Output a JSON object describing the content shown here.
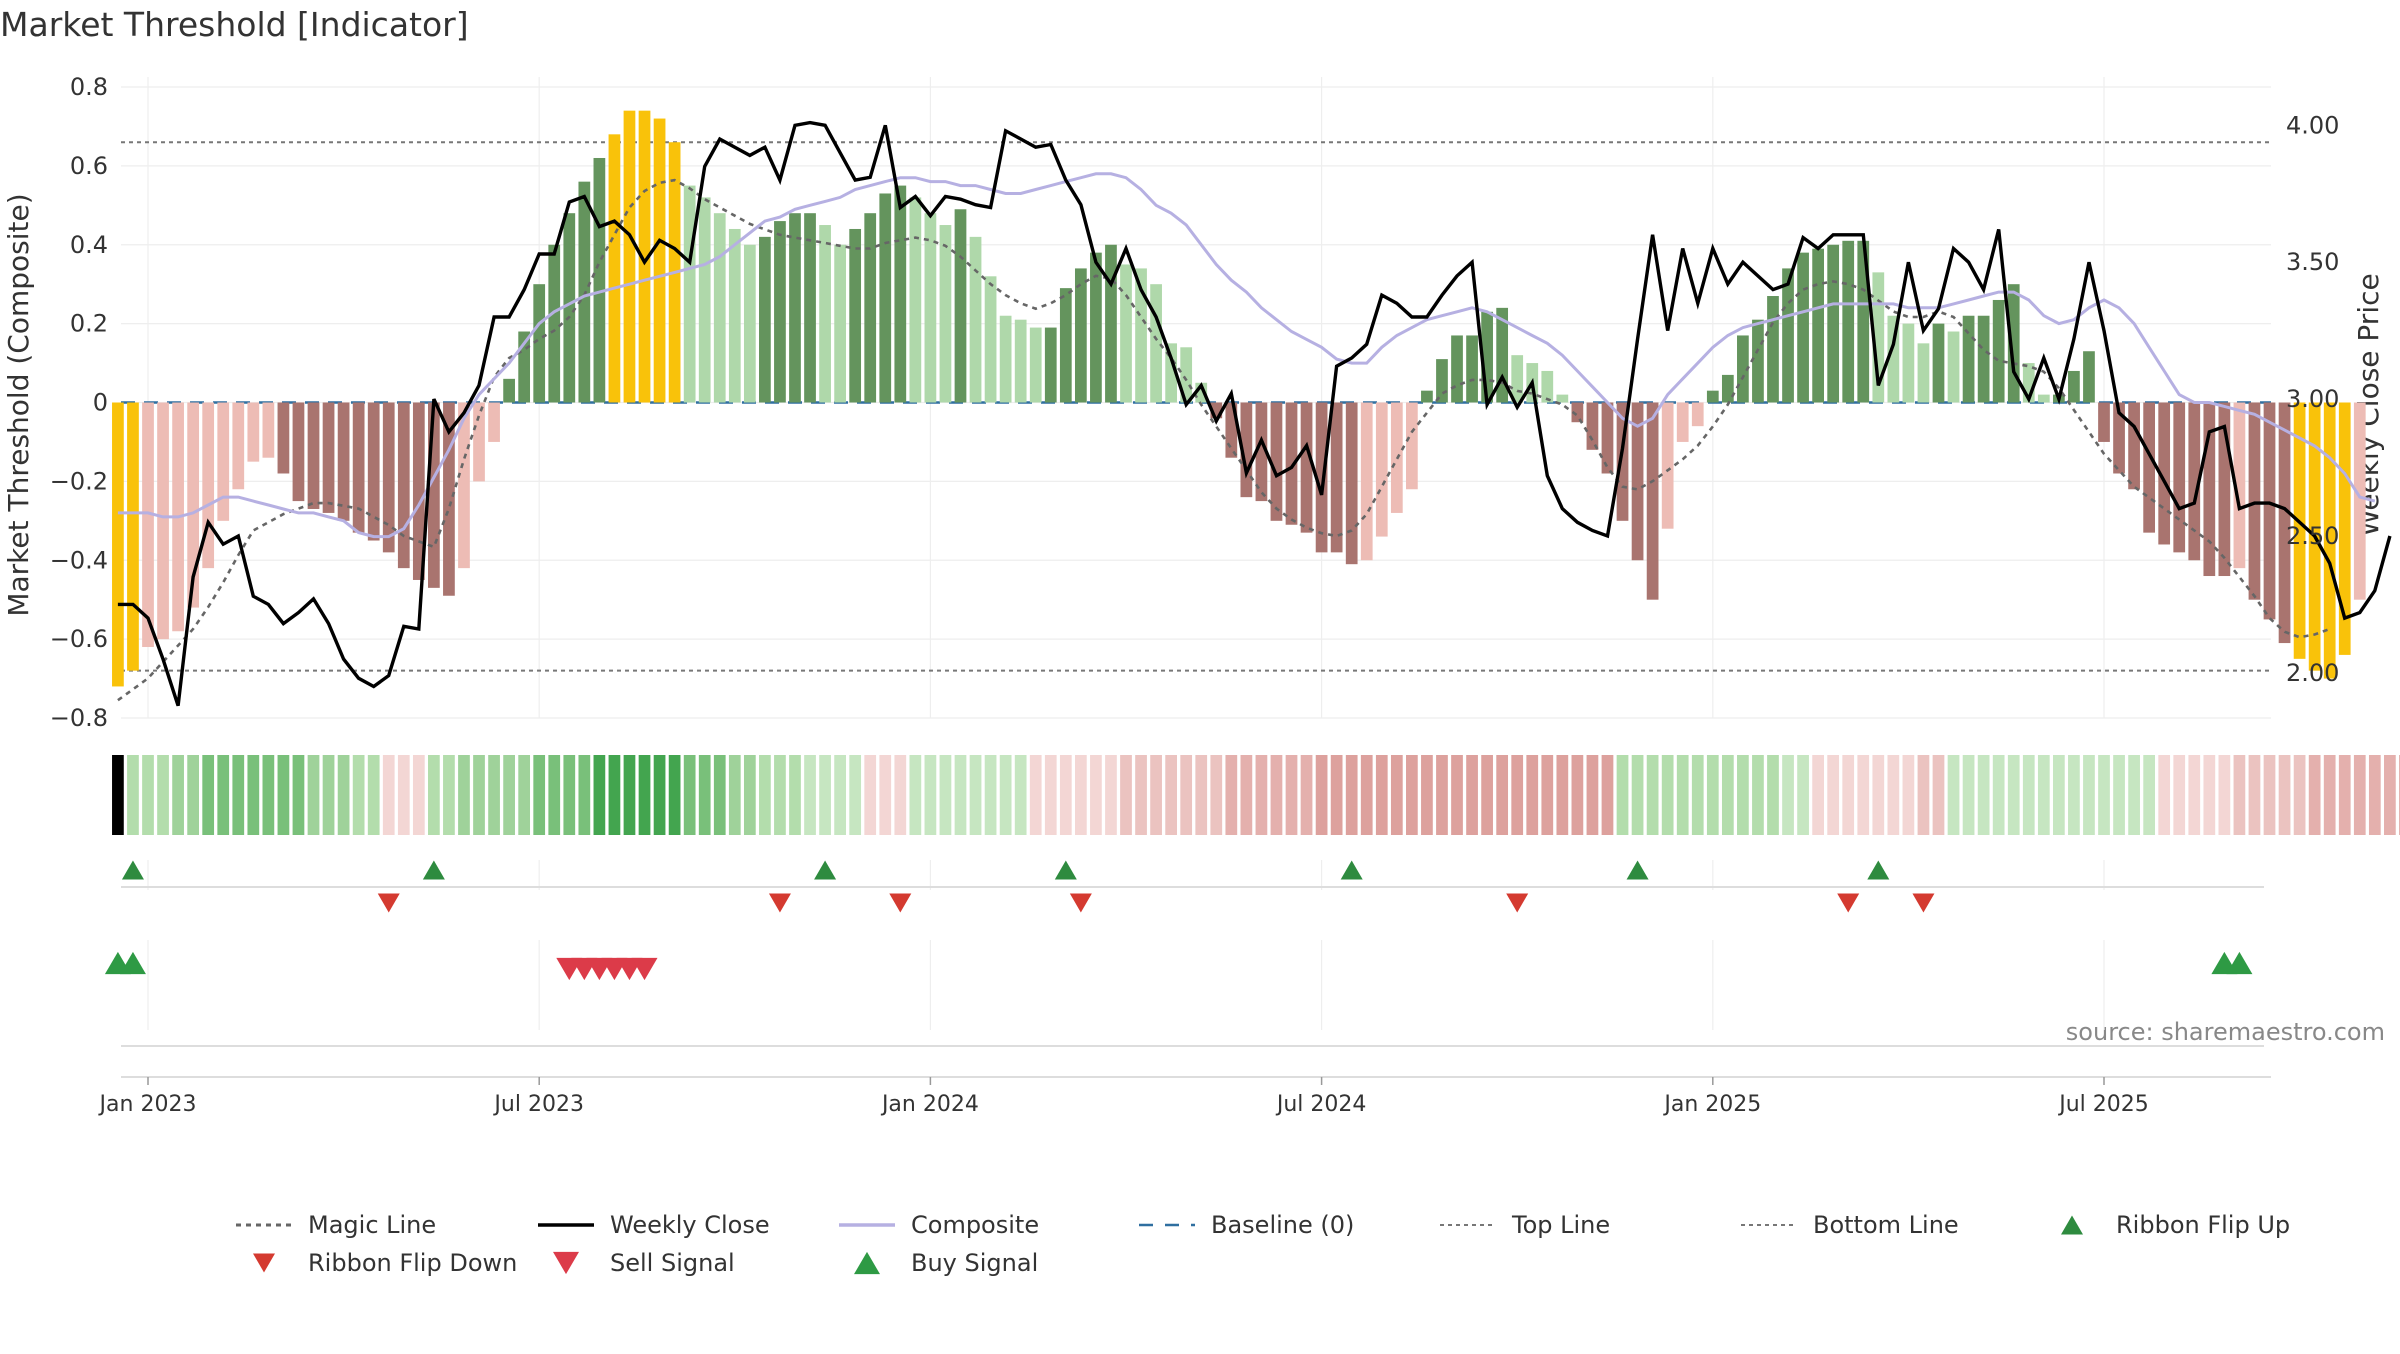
{
  "chart_data": {
    "type": "bar",
    "title": "Market Threshold [Indicator]",
    "ylabel": "Market Threshold (Composite)",
    "y2label": "Weekly Close Price",
    "source": "source: sharemaestro.com",
    "ylim": [
      -0.8,
      0.8
    ],
    "y2lim": [
      1.835,
      4.14
    ],
    "yticks": [
      0.8,
      0.6,
      0.4,
      0.2,
      0,
      -0.2,
      -0.4,
      -0.6,
      -0.8
    ],
    "ytick_labels": [
      "0.8",
      "0.6",
      "0.4",
      "0.2",
      "0",
      "−0.2",
      "−0.4",
      "−0.6",
      "−0.8"
    ],
    "y2ticks": [
      4.0,
      3.5,
      3.0,
      2.5,
      2.0
    ],
    "y2tick_labels": [
      "4.00",
      "3.50",
      "3.00",
      "2.50",
      "2.00"
    ],
    "x_range": [
      0,
      143
    ],
    "xticks": [
      {
        "x": 2,
        "label": "Jan 2023"
      },
      {
        "x": 28,
        "label": "Jul 2023"
      },
      {
        "x": 54,
        "label": "Jan 2024"
      },
      {
        "x": 80,
        "label": "Jul 2024"
      },
      {
        "x": 106,
        "label": "Jan 2025"
      },
      {
        "x": 132,
        "label": "Jul 2025"
      }
    ],
    "top_line": 0.66,
    "bottom_line": -0.68,
    "baseline": 0,
    "histogram": [
      -0.72,
      -0.68,
      -0.62,
      -0.6,
      -0.58,
      -0.52,
      -0.42,
      -0.3,
      -0.22,
      -0.15,
      -0.14,
      -0.18,
      -0.25,
      -0.27,
      -0.28,
      -0.3,
      -0.33,
      -0.35,
      -0.38,
      -0.42,
      -0.45,
      -0.47,
      -0.49,
      -0.42,
      -0.2,
      -0.1,
      0.06,
      0.18,
      0.3,
      0.4,
      0.48,
      0.56,
      0.62,
      0.68,
      0.74,
      0.74,
      0.72,
      0.66,
      0.55,
      0.52,
      0.48,
      0.44,
      0.4,
      0.42,
      0.46,
      0.48,
      0.48,
      0.45,
      0.4,
      0.44,
      0.48,
      0.53,
      0.55,
      0.52,
      0.48,
      0.45,
      0.49,
      0.42,
      0.32,
      0.22,
      0.21,
      0.19,
      0.19,
      0.29,
      0.34,
      0.38,
      0.4,
      0.35,
      0.34,
      0.3,
      0.15,
      0.14,
      0.05,
      -0.04,
      -0.14,
      -0.24,
      -0.25,
      -0.3,
      -0.31,
      -0.33,
      -0.38,
      -0.38,
      -0.41,
      -0.4,
      -0.34,
      -0.28,
      -0.22,
      0.03,
      0.11,
      0.17,
      0.17,
      0.23,
      0.24,
      0.12,
      0.1,
      0.08,
      0.02,
      -0.05,
      -0.12,
      -0.18,
      -0.3,
      -0.4,
      -0.5,
      -0.32,
      -0.1,
      -0.06,
      0.03,
      0.07,
      0.17,
      0.21,
      0.27,
      0.34,
      0.38,
      0.39,
      0.4,
      0.41,
      0.41,
      0.33,
      0.22,
      0.2,
      0.15,
      0.2,
      0.18,
      0.22,
      0.22,
      0.26,
      0.3,
      0.1,
      0.02,
      0.02,
      0.08,
      0.13,
      -0.1,
      -0.18,
      -0.22,
      -0.33,
      -0.36,
      -0.38,
      -0.4,
      -0.44,
      -0.44,
      -0.42,
      -0.5,
      -0.55,
      -0.61,
      -0.65,
      -0.68,
      -0.7,
      -0.64,
      -0.5
    ],
    "highlight_threshold": 0.64,
    "colors": {
      "highlight": "#f9c20a",
      "pos_strong": "#64945d",
      "pos_weak": "#afd8aa",
      "neg_strong": "#a9746f",
      "neg_weak": "#edbcb5",
      "magic_line": "#666666",
      "weekly_close": "#000000",
      "composite": "#b6b0e2",
      "baseline": "#2f6fa0",
      "threshold_lines": "#777777",
      "ribbon_up": "#2e8b3f",
      "ribbon_down": "#d43a30",
      "signal_sell": "#dc3b49",
      "signal_buy": "#2e9a44",
      "ribbon_pos_dark": "#43a54f",
      "ribbon_neg_dark": "#cf8784",
      "grid": "#eeeeee"
    },
    "weekly_close": [
      2.25,
      2.25,
      2.2,
      2.05,
      1.88,
      2.35,
      2.55,
      2.47,
      2.5,
      2.28,
      2.25,
      2.18,
      2.22,
      2.27,
      2.18,
      2.05,
      1.98,
      1.95,
      1.99,
      2.17,
      2.16,
      3.0,
      2.88,
      2.95,
      3.05,
      3.3,
      3.3,
      3.4,
      3.53,
      3.53,
      3.72,
      3.74,
      3.63,
      3.65,
      3.6,
      3.5,
      3.58,
      3.55,
      3.5,
      3.85,
      3.95,
      3.92,
      3.89,
      3.92,
      3.8,
      4.0,
      4.01,
      4.0,
      3.9,
      3.8,
      3.81,
      4.0,
      3.7,
      3.74,
      3.67,
      3.74,
      3.73,
      3.71,
      3.7,
      3.98,
      3.95,
      3.92,
      3.93,
      3.8,
      3.71,
      3.5,
      3.42,
      3.55,
      3.4,
      3.3,
      3.15,
      2.98,
      3.05,
      2.92,
      3.02,
      2.73,
      2.85,
      2.72,
      2.75,
      2.83,
      2.65,
      3.12,
      3.15,
      3.2,
      3.38,
      3.35,
      3.3,
      3.3,
      3.38,
      3.45,
      3.5,
      2.98,
      3.08,
      2.97,
      3.06,
      2.72,
      2.6,
      2.55,
      2.52,
      2.5,
      2.82,
      3.22,
      3.6,
      3.25,
      3.55,
      3.35,
      3.55,
      3.42,
      3.5,
      3.45,
      3.4,
      3.42,
      3.59,
      3.55,
      3.6,
      3.6,
      3.6,
      3.05,
      3.2,
      3.5,
      3.25,
      3.33,
      3.55,
      3.5,
      3.4,
      3.62,
      3.1,
      3.0,
      3.15,
      3.0,
      3.22,
      3.5,
      3.25,
      2.95,
      2.9,
      2.8,
      2.7,
      2.6,
      2.62,
      2.88,
      2.9,
      2.6,
      2.62,
      2.62,
      2.6,
      2.55,
      2.5,
      2.4,
      2.2,
      2.22,
      2.3,
      2.5
    ],
    "magic_line": [
      1.9,
      1.94,
      1.98,
      2.04,
      2.1,
      2.16,
      2.24,
      2.33,
      2.43,
      2.52,
      2.55,
      2.58,
      2.6,
      2.62,
      2.62,
      2.61,
      2.6,
      2.57,
      2.54,
      2.5,
      2.48,
      2.46,
      2.6,
      2.78,
      2.94,
      3.08,
      3.15,
      3.18,
      3.22,
      3.25,
      3.3,
      3.38,
      3.5,
      3.6,
      3.7,
      3.76,
      3.79,
      3.8,
      3.77,
      3.73,
      3.7,
      3.67,
      3.64,
      3.62,
      3.6,
      3.59,
      3.58,
      3.57,
      3.56,
      3.55,
      3.55,
      3.57,
      3.58,
      3.59,
      3.58,
      3.56,
      3.52,
      3.47,
      3.42,
      3.38,
      3.35,
      3.33,
      3.35,
      3.38,
      3.42,
      3.45,
      3.44,
      3.38,
      3.3,
      3.22,
      3.15,
      3.07,
      2.98,
      2.9,
      2.82,
      2.74,
      2.66,
      2.6,
      2.56,
      2.53,
      2.51,
      2.5,
      2.52,
      2.58,
      2.68,
      2.78,
      2.88,
      2.95,
      3.02,
      3.05,
      3.07,
      3.07,
      3.06,
      3.03,
      3.02,
      3.0,
      2.98,
      2.94,
      2.85,
      2.75,
      2.68,
      2.67,
      2.7,
      2.74,
      2.78,
      2.83,
      2.9,
      2.98,
      3.08,
      3.18,
      3.28,
      3.35,
      3.4,
      3.42,
      3.43,
      3.42,
      3.4,
      3.36,
      3.32,
      3.3,
      3.3,
      3.32,
      3.3,
      3.24,
      3.18,
      3.14,
      3.13,
      3.12,
      3.1,
      3.04,
      2.96,
      2.88,
      2.8,
      2.74,
      2.68,
      2.64,
      2.6,
      2.56,
      2.52,
      2.48,
      2.42,
      2.35,
      2.28,
      2.2,
      2.15,
      2.13,
      2.14,
      2.16
    ],
    "composite": [
      -0.28,
      -0.28,
      -0.28,
      -0.29,
      -0.29,
      -0.28,
      -0.26,
      -0.24,
      -0.24,
      -0.25,
      -0.26,
      -0.27,
      -0.28,
      -0.28,
      -0.29,
      -0.3,
      -0.33,
      -0.34,
      -0.34,
      -0.32,
      -0.26,
      -0.19,
      -0.12,
      -0.04,
      0.02,
      0.06,
      0.1,
      0.15,
      0.2,
      0.23,
      0.25,
      0.27,
      0.28,
      0.29,
      0.3,
      0.31,
      0.32,
      0.33,
      0.34,
      0.35,
      0.37,
      0.4,
      0.43,
      0.46,
      0.47,
      0.49,
      0.5,
      0.51,
      0.52,
      0.54,
      0.55,
      0.56,
      0.57,
      0.57,
      0.56,
      0.56,
      0.55,
      0.55,
      0.54,
      0.53,
      0.53,
      0.54,
      0.55,
      0.56,
      0.57,
      0.58,
      0.58,
      0.57,
      0.54,
      0.5,
      0.48,
      0.45,
      0.4,
      0.35,
      0.31,
      0.28,
      0.24,
      0.21,
      0.18,
      0.16,
      0.14,
      0.11,
      0.1,
      0.1,
      0.14,
      0.17,
      0.19,
      0.21,
      0.22,
      0.23,
      0.24,
      0.23,
      0.21,
      0.19,
      0.17,
      0.15,
      0.12,
      0.08,
      0.04,
      0.0,
      -0.04,
      -0.06,
      -0.04,
      0.02,
      0.06,
      0.1,
      0.14,
      0.17,
      0.19,
      0.2,
      0.21,
      0.22,
      0.23,
      0.24,
      0.25,
      0.25,
      0.25,
      0.25,
      0.25,
      0.24,
      0.24,
      0.24,
      0.25,
      0.26,
      0.27,
      0.28,
      0.28,
      0.26,
      0.22,
      0.2,
      0.21,
      0.24,
      0.26,
      0.24,
      0.2,
      0.14,
      0.08,
      0.02,
      0.0,
      0.0,
      -0.01,
      -0.02,
      -0.03,
      -0.05,
      -0.07,
      -0.09,
      -0.11,
      -0.14,
      -0.18,
      -0.24,
      -0.25
    ],
    "ribbon_levels": [
      0,
      3,
      3,
      3,
      4,
      4,
      5,
      5,
      5,
      5,
      5,
      5,
      5,
      4,
      4,
      4,
      3,
      3,
      -1,
      -1,
      -1,
      3,
      3,
      4,
      4,
      4,
      4,
      4,
      5,
      5,
      5,
      5,
      6,
      6,
      6,
      6,
      6,
      6,
      5,
      5,
      5,
      4,
      4,
      3,
      3,
      3,
      2,
      2,
      2,
      2,
      -1,
      -1,
      -1,
      2,
      2,
      2,
      2,
      2,
      2,
      2,
      2,
      -1,
      -1,
      -1,
      -1,
      -1,
      -1,
      -2,
      -2,
      -2,
      -2,
      -2,
      -2,
      -2,
      -3,
      -3,
      -3,
      -3,
      -3,
      -3,
      -4,
      -4,
      -4,
      -4,
      -4,
      -4,
      -4,
      -4,
      -4,
      -4,
      -4,
      -4,
      -4,
      -4,
      -4,
      -4,
      -4,
      -4,
      -4,
      -4,
      3,
      3,
      3,
      3,
      3,
      3,
      3,
      3,
      3,
      3,
      3,
      2,
      2,
      -1,
      -1,
      -1,
      -1,
      -1,
      -1,
      -1,
      -2,
      -2,
      2,
      2,
      2,
      2,
      2,
      2,
      2,
      2,
      2,
      2,
      2,
      2,
      2,
      2,
      -1,
      -1,
      -1,
      -1,
      -1,
      -2,
      -2,
      -2,
      -2,
      -2,
      -3,
      -3,
      -3,
      -3,
      -3,
      -3,
      -3,
      -3,
      -3,
      -3,
      -3,
      -3,
      -3,
      -3
    ],
    "ribbon_flip_up": [
      1,
      21,
      47,
      63,
      82,
      101,
      117
    ],
    "ribbon_flip_down": [
      18,
      44,
      52,
      64,
      93,
      115,
      120
    ],
    "buy_signals": [
      0,
      1,
      140,
      141
    ],
    "sell_signals": [
      30,
      31,
      32,
      33,
      34,
      35
    ],
    "legend": [
      {
        "key": "magic",
        "label": "Magic Line"
      },
      {
        "key": "close",
        "label": "Weekly Close"
      },
      {
        "key": "composite",
        "label": "Composite"
      },
      {
        "key": "baseline",
        "label": "Baseline (0)"
      },
      {
        "key": "top",
        "label": "Top Line"
      },
      {
        "key": "bottom",
        "label": "Bottom Line"
      },
      {
        "key": "flip_up",
        "label": "Ribbon Flip Up"
      },
      {
        "key": "flip_down",
        "label": "Ribbon Flip Down"
      },
      {
        "key": "sell",
        "label": "Sell Signal"
      },
      {
        "key": "buy",
        "label": "Buy Signal"
      }
    ]
  }
}
